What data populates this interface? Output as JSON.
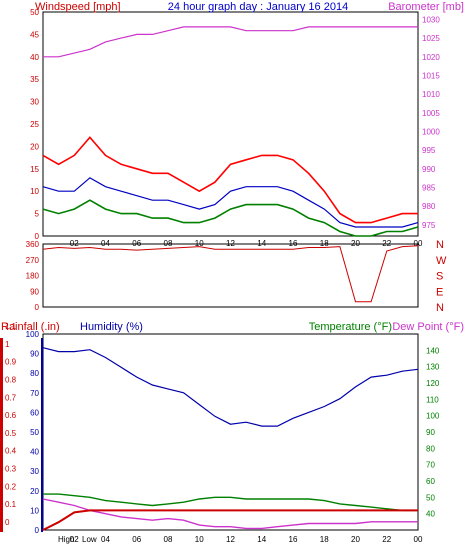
{
  "header": {
    "title": "24 hour graph day : January 16 2014",
    "windspeed_label": "Windspeed [mph]",
    "barometer_label": "Barometer [mb]"
  },
  "colors": {
    "wind_gust": "#ff0000",
    "wind_avg": "#008000",
    "wind_line": "#0000c0",
    "barometer": "#cc33cc",
    "direction": "#cc0000",
    "humidity": "#0000aa",
    "rainfall": "#cc0000",
    "temperature": "#008000",
    "dewpoint": "#cc33cc",
    "title_blue": "#0000cc"
  },
  "x_axis_labels": [
    "02",
    "04",
    "06",
    "08",
    "10",
    "12",
    "14",
    "16",
    "18",
    "20",
    "22",
    "00"
  ],
  "chart_data": [
    {
      "type": "line",
      "title": "24 hour graph day : January 16 2014",
      "xlabel": "",
      "ylabel": "Windspeed [mph]",
      "ylim": [
        0,
        50
      ],
      "y_ticks": [
        "0",
        "5",
        "10",
        "15",
        "20",
        "25",
        "30",
        "35",
        "40",
        "45",
        "50"
      ],
      "y2label": "Barometer [mb]",
      "y2lim": [
        972,
        1032
      ],
      "y2_ticks": [
        "975",
        "980",
        "985",
        "990",
        "995",
        "1000",
        "1005",
        "1010",
        "1015",
        "1020",
        "1025",
        "1030"
      ],
      "x": [
        "00",
        "01",
        "02",
        "03",
        "04",
        "05",
        "06",
        "07",
        "08",
        "09",
        "10",
        "11",
        "12",
        "13",
        "14",
        "15",
        "16",
        "17",
        "18",
        "19",
        "20",
        "21",
        "22",
        "23",
        "00"
      ],
      "series": [
        {
          "values": [
            18,
            16,
            18,
            22,
            18,
            16,
            15,
            14,
            14,
            12,
            10,
            12,
            16,
            17,
            18,
            18,
            17,
            14,
            10,
            5,
            3,
            3,
            4,
            5,
            5
          ]
        },
        {
          "values": [
            11,
            10,
            10,
            13,
            11,
            10,
            9,
            8,
            8,
            7,
            6,
            7,
            10,
            11,
            11,
            11,
            10,
            8,
            6,
            3,
            2,
            2,
            2,
            2,
            3
          ]
        },
        {
          "values": [
            6,
            5,
            6,
            8,
            6,
            5,
            5,
            4,
            4,
            3,
            3,
            4,
            6,
            7,
            7,
            7,
            6,
            4,
            3,
            1,
            0,
            0,
            1,
            1,
            2
          ]
        },
        {
          "axis": "right",
          "values": [
            1020,
            1020,
            1021,
            1022,
            1024,
            1025,
            1026,
            1026,
            1027,
            1028,
            1028,
            1028,
            1028,
            1027,
            1027,
            1027,
            1027,
            1028,
            1028,
            1028,
            1028,
            1028,
            1028,
            1028,
            1028
          ]
        }
      ]
    },
    {
      "type": "line",
      "ylabel": "",
      "ylim": [
        0,
        360
      ],
      "y_ticks": [
        "0",
        "90",
        "180",
        "270",
        "360"
      ],
      "compass_labels": [
        "N",
        "W",
        "S",
        "E",
        "N"
      ],
      "x": [
        "00",
        "01",
        "02",
        "03",
        "04",
        "05",
        "06",
        "07",
        "08",
        "09",
        "10",
        "11",
        "12",
        "13",
        "14",
        "15",
        "16",
        "17",
        "18",
        "19",
        "20",
        "21",
        "22",
        "23",
        "00"
      ],
      "series": [
        {
          "values": [
            330,
            340,
            335,
            340,
            330,
            330,
            325,
            330,
            335,
            340,
            345,
            330,
            330,
            330,
            330,
            330,
            330,
            340,
            340,
            345,
            30,
            30,
            320,
            345,
            350
          ]
        }
      ]
    },
    {
      "type": "line",
      "ylabel": "Rainfall (.in)",
      "ylim": [
        0,
        1.0
      ],
      "y_ticks": [
        "0",
        "0.1",
        "0.2",
        "0.3",
        "0.4",
        "0.5",
        "0.6",
        "0.7",
        "0.8",
        "0.9",
        "1",
        "1.1"
      ],
      "humidity_label": "Humidity (%)",
      "humidity_lim": [
        0,
        100
      ],
      "humidity_ticks": [
        "0",
        "10",
        "20",
        "30",
        "40",
        "50",
        "60",
        "70",
        "80",
        "90",
        "100"
      ],
      "y2label": "Temperature (°F)",
      "dewpoint_label": "Dew Point (°F)",
      "y2lim": [
        30,
        150
      ],
      "y2_ticks": [
        "40",
        "50",
        "60",
        "70",
        "80",
        "90",
        "100",
        "110",
        "120",
        "130",
        "140"
      ],
      "annotations": [
        "High",
        "Low"
      ],
      "x": [
        "00",
        "01",
        "02",
        "03",
        "04",
        "05",
        "06",
        "07",
        "08",
        "09",
        "10",
        "11",
        "12",
        "13",
        "14",
        "15",
        "16",
        "17",
        "18",
        "19",
        "20",
        "21",
        "22",
        "23",
        "00"
      ],
      "series": [
        {
          "values": [
            93,
            91,
            91,
            92,
            88,
            83,
            78,
            74,
            72,
            70,
            64,
            58,
            54,
            55,
            53,
            53,
            57,
            60,
            63,
            67,
            73,
            78,
            79,
            81,
            82
          ]
        },
        {
          "values": [
            0,
            0.04,
            0.09,
            0.1,
            0.1,
            0.1,
            0.1,
            0.1,
            0.1,
            0.1,
            0.1,
            0.1,
            0.1,
            0.1,
            0.1,
            0.1,
            0.1,
            0.1,
            0.1,
            0.1,
            0.1,
            0.1,
            0.1,
            0.1,
            0.1
          ]
        },
        {
          "axis": "right",
          "values": [
            52,
            52,
            51,
            50,
            48,
            47,
            46,
            45,
            46,
            47,
            49,
            50,
            50,
            49,
            49,
            49,
            49,
            49,
            48,
            46,
            45,
            44,
            43,
            42,
            42
          ]
        },
        {
          "axis": "right",
          "values": [
            49,
            47,
            45,
            42,
            40,
            38,
            37,
            36,
            37,
            36,
            33,
            32,
            32,
            31,
            31,
            32,
            33,
            34,
            34,
            34,
            34,
            35,
            35,
            35,
            35
          ]
        }
      ]
    }
  ]
}
